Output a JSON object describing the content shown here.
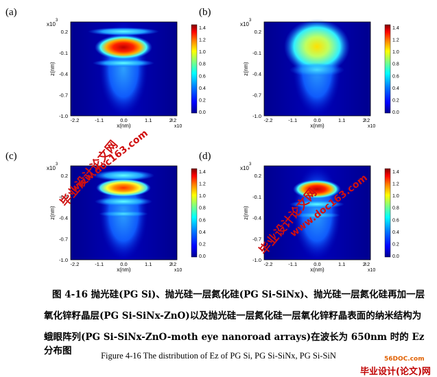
{
  "panels": [
    {
      "tag": "(a)",
      "profile": "a"
    },
    {
      "tag": "(b)",
      "profile": "b"
    },
    {
      "tag": "(c)",
      "profile": "c"
    },
    {
      "tag": "(d)",
      "profile": "d"
    }
  ],
  "axis": {
    "y_multiplier": "x10",
    "y_exp": "3",
    "y_label": "z(nm)",
    "x_label": "x(nm)",
    "x_multiplier": "x10",
    "x_exp": "3",
    "y_ticks": [
      "0.2",
      "-0.1",
      "-0.4",
      "-0.7",
      "-1.0"
    ],
    "x_ticks": [
      "-2.2",
      "-1.1",
      "0.0",
      "1.1",
      "2.2"
    ]
  },
  "colorbar": {
    "ticks": [
      "1.4",
      "1.2",
      "1.0",
      "0.8",
      "0.6",
      "0.4",
      "0.2",
      "0.0"
    ],
    "colors": [
      "#00008f",
      "#0000ff",
      "#0080ff",
      "#00ffff",
      "#80ff80",
      "#ffff00",
      "#ff8000",
      "#ff0000",
      "#800000"
    ]
  },
  "caption": {
    "line1": "图  4-16 抛光硅(PG Si)、抛光硅一层氮化硅(PG Si-SiNx)、抛光硅一层氮化硅再加一层",
    "line2": "氧化锌籽晶层(PG  Si-SiNx-ZnO)以及抛光硅一层氮化硅一层氧化锌籽晶表面的纳米结构为",
    "line3": "蛾眼阵列(PG Si-SiNx-ZnO-moth eye nanoroad arrays)在波长为  650nm 时的 Ez 分布图",
    "english": "Figure 4-16 The distribution of Ez of PG Si, PG Si-SiNx, PG Si-SiN"
  },
  "watermarks": {
    "site": "www.doc163.com",
    "brand": "毕业设计论文网",
    "corner_brand": "毕业设计(论文)网",
    "corner_site": "56DOC.com"
  }
}
